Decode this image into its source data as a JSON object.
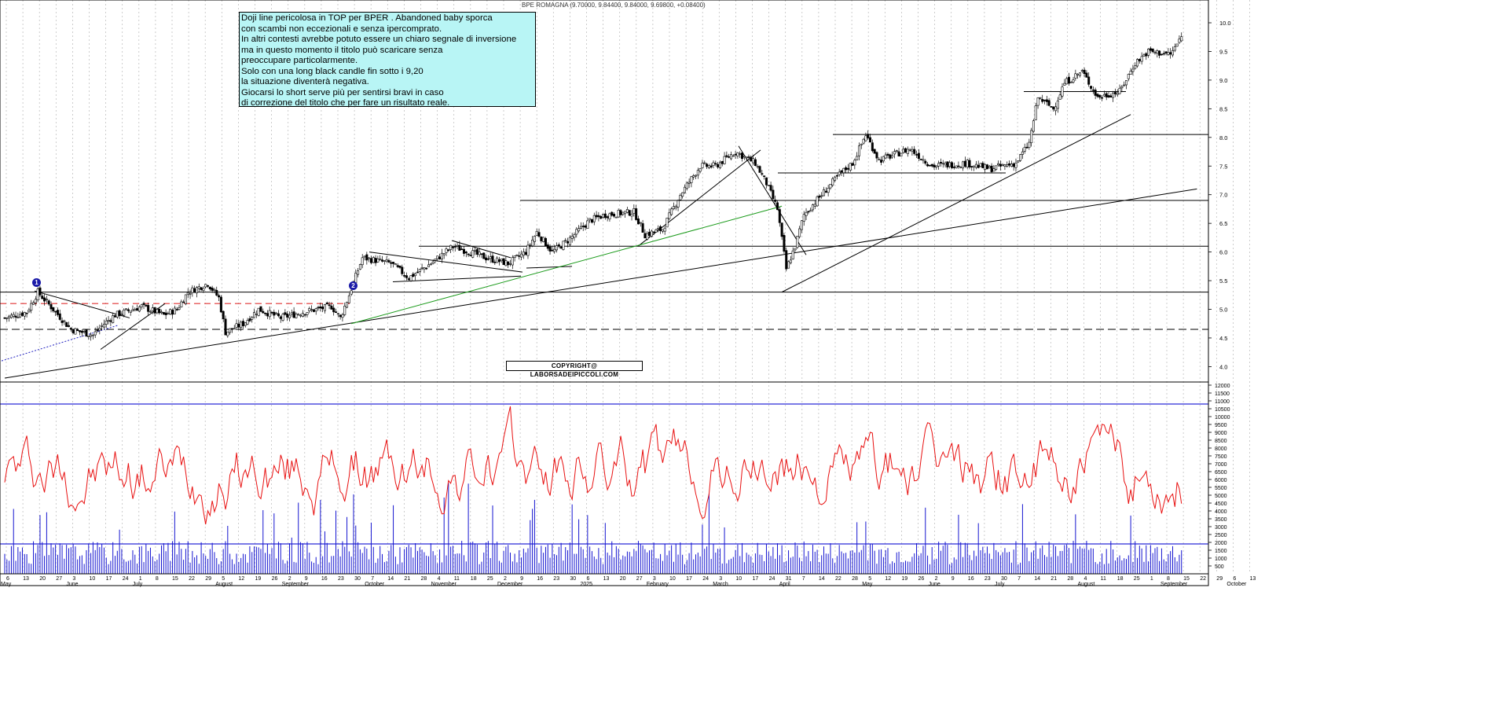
{
  "header": {
    "title": "BPE ROMAGNA (9.70000, 9.84400, 9.84000, 9.69800, +0.08400)"
  },
  "annotation": {
    "lines": [
      "Doji line pericolosa in TOP per BPER . Abandoned baby sporca",
      "con scambi non eccezionali e senza ipercomprato.",
      "In altri contesti avrebbe potuto essere un chiaro segnale di inversione",
      "ma in questo momento il titolo può scaricare senza",
      "preoccupare particolarmente.",
      "Solo con una long black candle fin sotto i 9,20",
      "la situazione diventerà negativa.",
      "Giocarsi lo short serve più per sentirsi bravi in caso",
      "di correzione del titolo che per fare un risultato reale."
    ]
  },
  "copyright": "COPYRIGHT@ LABORSADEIPICCOLI.COM",
  "markers": [
    {
      "label": "1"
    },
    {
      "label": "2"
    }
  ],
  "chart_data": [
    {
      "type": "candlestick",
      "title": "BPE ROMAGNA (9.70000, 9.84400, 9.84000, 9.69800, +0.08400)",
      "ylim": [
        3.6,
        10.2
      ],
      "y_ticks": [
        "10.0",
        "9.5",
        "9.0",
        "8.5",
        "8.0",
        "7.5",
        "7.0",
        "6.5",
        "6.0",
        "5.5",
        "5.0",
        "4.5",
        "4.0"
      ],
      "grid": "vertical dotted",
      "x_months": [
        "May",
        "June",
        "July",
        "August",
        "September",
        "October",
        "November",
        "December",
        "2025",
        "February",
        "March",
        "April",
        "May",
        "June",
        "July",
        "August",
        "September",
        "October"
      ],
      "x_days": [
        "6",
        "13",
        "20",
        "27",
        "3",
        "10",
        "17",
        "24",
        "1",
        "8",
        "15",
        "22",
        "29",
        "5",
        "12",
        "19",
        "26",
        "2",
        "9",
        "16",
        "23",
        "30",
        "7",
        "14",
        "21",
        "28",
        "4",
        "11",
        "18",
        "25",
        "2",
        "9",
        "16",
        "23",
        "30",
        "6",
        "13",
        "20",
        "27",
        "3",
        "10",
        "17",
        "24",
        "3",
        "10",
        "17",
        "24",
        "31",
        "7",
        "14",
        "22",
        "28",
        "5",
        "12",
        "19",
        "26",
        "2",
        "9",
        "16",
        "23",
        "30",
        "7",
        "14",
        "21",
        "28",
        "4",
        "11",
        "18",
        "25",
        "1",
        "8",
        "15",
        "22",
        "29",
        "6",
        "13"
      ],
      "anchors": [
        {
          "day": 0,
          "price": 4.85
        },
        {
          "day": 10,
          "price": 4.95
        },
        {
          "day": 15,
          "price": 5.3
        },
        {
          "day": 30,
          "price": 4.65
        },
        {
          "day": 40,
          "price": 4.55
        },
        {
          "day": 45,
          "price": 4.75
        },
        {
          "day": 50,
          "price": 4.9
        },
        {
          "day": 62,
          "price": 5.05
        },
        {
          "day": 72,
          "price": 4.9
        },
        {
          "day": 78,
          "price": 5.0
        },
        {
          "day": 83,
          "price": 5.3
        },
        {
          "day": 92,
          "price": 5.45
        },
        {
          "day": 97,
          "price": 5.2
        },
        {
          "day": 100,
          "price": 4.6
        },
        {
          "day": 108,
          "price": 4.75
        },
        {
          "day": 115,
          "price": 5.0
        },
        {
          "day": 125,
          "price": 4.85
        },
        {
          "day": 135,
          "price": 4.95
        },
        {
          "day": 148,
          "price": 5.05
        },
        {
          "day": 152,
          "price": 4.85
        },
        {
          "day": 156,
          "price": 5.25
        },
        {
          "day": 162,
          "price": 5.9
        },
        {
          "day": 175,
          "price": 5.8
        },
        {
          "day": 183,
          "price": 5.55
        },
        {
          "day": 193,
          "price": 5.8
        },
        {
          "day": 203,
          "price": 6.1
        },
        {
          "day": 218,
          "price": 5.9
        },
        {
          "day": 228,
          "price": 5.8
        },
        {
          "day": 236,
          "price": 6.0
        },
        {
          "day": 241,
          "price": 6.35
        },
        {
          "day": 248,
          "price": 6.0
        },
        {
          "day": 255,
          "price": 6.2
        },
        {
          "day": 265,
          "price": 6.55
        },
        {
          "day": 272,
          "price": 6.65
        },
        {
          "day": 285,
          "price": 6.7
        },
        {
          "day": 290,
          "price": 6.3
        },
        {
          "day": 298,
          "price": 6.4
        },
        {
          "day": 306,
          "price": 7.0
        },
        {
          "day": 315,
          "price": 7.5
        },
        {
          "day": 322,
          "price": 7.5
        },
        {
          "day": 331,
          "price": 7.75
        },
        {
          "day": 340,
          "price": 7.55
        },
        {
          "day": 345,
          "price": 7.2
        },
        {
          "day": 350,
          "price": 6.75
        },
        {
          "day": 354,
          "price": 5.7
        },
        {
          "day": 358,
          "price": 6.1
        },
        {
          "day": 362,
          "price": 6.65
        },
        {
          "day": 370,
          "price": 7.0
        },
        {
          "day": 378,
          "price": 7.35
        },
        {
          "day": 384,
          "price": 7.55
        },
        {
          "day": 390,
          "price": 8.05
        },
        {
          "day": 396,
          "price": 7.6
        },
        {
          "day": 410,
          "price": 7.8
        },
        {
          "day": 420,
          "price": 7.5
        },
        {
          "day": 436,
          "price": 7.55
        },
        {
          "day": 446,
          "price": 7.45
        },
        {
          "day": 458,
          "price": 7.55
        },
        {
          "day": 464,
          "price": 7.9
        },
        {
          "day": 468,
          "price": 8.7
        },
        {
          "day": 475,
          "price": 8.5
        },
        {
          "day": 480,
          "price": 8.95
        },
        {
          "day": 488,
          "price": 9.15
        },
        {
          "day": 495,
          "price": 8.7
        },
        {
          "day": 505,
          "price": 8.8
        },
        {
          "day": 512,
          "price": 9.3
        },
        {
          "day": 518,
          "price": 9.5
        },
        {
          "day": 528,
          "price": 9.45
        },
        {
          "day": 533,
          "price": 9.75
        }
      ],
      "horizontal_levels": [
        8.05,
        6.9,
        6.1,
        5.3,
        4.65,
        5.1
      ],
      "trendlines": [
        {
          "name": "long uptrend",
          "from": {
            "day": 0,
            "price": 3.8
          },
          "to": {
            "day": 540,
            "price": 7.1
          }
        },
        {
          "name": "green support",
          "from": {
            "day": 157,
            "price": 4.75
          },
          "to": {
            "day": 352,
            "price": 6.8
          },
          "color": "#1a9a1a"
        },
        {
          "name": "April uptrend",
          "from": {
            "day": 352,
            "price": 5.3
          },
          "to": {
            "day": 510,
            "price": 8.4
          }
        }
      ]
    },
    {
      "type": "line+bar",
      "ylim": [
        0,
        12000
      ],
      "y_ticks": [
        "12000",
        "11500",
        "11000",
        "10500",
        "10000",
        "9500",
        "9000",
        "8500",
        "8000",
        "7500",
        "7000",
        "6500",
        "6000",
        "5500",
        "5000",
        "4500",
        "4000",
        "3500",
        "3000",
        "2500",
        "2000",
        "1500",
        "1000",
        "500"
      ],
      "reference_levels": [
        10800,
        1900
      ],
      "series": [
        {
          "type": "line",
          "color": "#e81010"
        },
        {
          "type": "bar",
          "color": "#1515d0"
        }
      ]
    }
  ]
}
